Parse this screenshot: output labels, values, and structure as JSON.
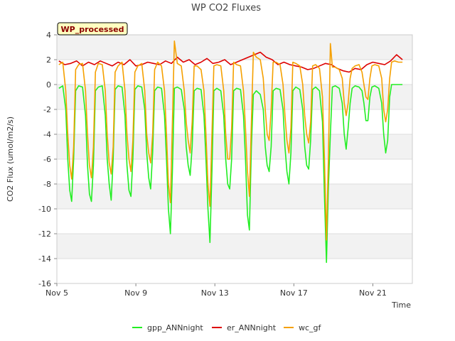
{
  "chart_data": {
    "type": "line",
    "title": "WP CO2 Fluxes",
    "xlabel": "Time",
    "ylabel": "CO2 Flux (umol/m2/s)",
    "annotation": "WP_processed",
    "xlim": [
      5.0,
      23.0
    ],
    "ylim": [
      -16,
      4
    ],
    "yticks": [
      4,
      2,
      0,
      -2,
      -4,
      -6,
      -8,
      -10,
      -12,
      -14,
      -16
    ],
    "xticks": [
      {
        "value": 5,
        "label": "Nov 5"
      },
      {
        "value": 9,
        "label": "Nov 9"
      },
      {
        "value": 13,
        "label": "Nov 13"
      },
      {
        "value": 17,
        "label": "Nov 17"
      },
      {
        "value": 21,
        "label": "Nov 21"
      }
    ],
    "legend_position": "bottom",
    "series": [
      {
        "name": "gpp_ANNnight",
        "color": "#22ee22",
        "x": [
          5.1,
          5.3,
          5.45,
          5.55,
          5.65,
          5.75,
          5.85,
          5.95,
          6.1,
          6.3,
          6.45,
          6.55,
          6.65,
          6.75,
          6.85,
          6.95,
          7.1,
          7.3,
          7.45,
          7.55,
          7.65,
          7.75,
          7.85,
          7.95,
          8.1,
          8.3,
          8.45,
          8.55,
          8.65,
          8.75,
          8.85,
          8.95,
          9.1,
          9.3,
          9.45,
          9.55,
          9.65,
          9.75,
          9.85,
          9.95,
          10.1,
          10.3,
          10.45,
          10.55,
          10.65,
          10.75,
          10.85,
          10.95,
          11.1,
          11.3,
          11.45,
          11.55,
          11.65,
          11.75,
          11.85,
          11.95,
          12.1,
          12.3,
          12.45,
          12.55,
          12.65,
          12.75,
          12.85,
          12.95,
          13.1,
          13.3,
          13.45,
          13.55,
          13.65,
          13.75,
          13.85,
          13.95,
          14.1,
          14.3,
          14.45,
          14.55,
          14.65,
          14.75,
          14.85,
          14.95,
          15.1,
          15.3,
          15.45,
          15.55,
          15.65,
          15.75,
          15.85,
          15.95,
          16.1,
          16.3,
          16.45,
          16.55,
          16.65,
          16.75,
          16.85,
          16.95,
          17.1,
          17.3,
          17.45,
          17.55,
          17.65,
          17.75,
          17.85,
          17.95,
          18.1,
          18.3,
          18.45,
          18.55,
          18.65,
          18.75,
          18.85,
          18.95,
          19.1,
          19.3,
          19.45,
          19.55,
          19.65,
          19.75,
          19.85,
          19.95,
          20.1,
          20.3,
          20.45,
          20.55,
          20.65,
          20.75,
          20.85,
          20.95,
          21.1,
          21.3,
          21.45,
          21.55,
          21.65,
          21.75,
          21.85,
          21.95,
          22.1,
          22.3,
          22.5
        ],
        "y": [
          -0.3,
          -0.1,
          -2.0,
          -6.0,
          -8.5,
          -9.4,
          -6.0,
          -0.5,
          -0.1,
          -0.2,
          -2.5,
          -6.5,
          -8.8,
          -9.4,
          -6.5,
          -0.5,
          -0.2,
          -0.1,
          -2.5,
          -6.0,
          -8.0,
          -9.3,
          -6.0,
          -0.4,
          -0.1,
          -0.2,
          -2.5,
          -6.5,
          -8.5,
          -9.0,
          -6.0,
          -0.4,
          -0.1,
          -0.2,
          -2.0,
          -5.5,
          -7.5,
          -8.4,
          -5.5,
          -0.5,
          -0.2,
          -0.3,
          -2.5,
          -6.0,
          -10.0,
          -12.0,
          -7.0,
          -0.3,
          -0.2,
          -0.4,
          -2.0,
          -5.0,
          -6.5,
          -7.3,
          -5.0,
          -0.5,
          -0.3,
          -0.4,
          -2.5,
          -6.0,
          -10.0,
          -12.7,
          -7.0,
          -0.5,
          -0.3,
          -0.5,
          -2.5,
          -6.0,
          -8.0,
          -8.4,
          -6.0,
          -0.5,
          -0.3,
          -0.4,
          -2.5,
          -6.0,
          -10.5,
          -11.7,
          -5.0,
          -0.8,
          -0.5,
          -0.8,
          -2.0,
          -5.0,
          -6.5,
          -7.0,
          -5.0,
          -0.5,
          -0.3,
          -0.4,
          -2.0,
          -5.0,
          -7.0,
          -8.0,
          -5.5,
          -0.5,
          -0.2,
          -0.4,
          -2.0,
          -5.0,
          -6.5,
          -6.8,
          -4.5,
          -0.4,
          -0.2,
          -0.5,
          -3.0,
          -9.0,
          -14.3,
          -8.3,
          -4.0,
          -0.2,
          -0.1,
          -0.3,
          -1.5,
          -4.0,
          -5.2,
          -3.5,
          -1.5,
          -0.3,
          -0.1,
          -0.2,
          -0.5,
          -1.5,
          -2.9,
          -2.9,
          -1.0,
          -0.2,
          -0.1,
          -0.3,
          -1.5,
          -4.0,
          -5.5,
          -4.5,
          -1.0,
          0.0,
          0.0,
          0.0,
          0.0
        ]
      },
      {
        "name": "er_ANNnight",
        "color": "#dd0000",
        "x": [
          5.1,
          5.4,
          5.7,
          6.0,
          6.3,
          6.6,
          6.9,
          7.2,
          7.5,
          7.8,
          8.1,
          8.4,
          8.7,
          9.0,
          9.3,
          9.6,
          9.9,
          10.2,
          10.5,
          10.8,
          11.1,
          11.4,
          11.7,
          12.0,
          12.3,
          12.6,
          12.9,
          13.2,
          13.5,
          13.8,
          14.1,
          14.4,
          14.7,
          15.0,
          15.3,
          15.6,
          15.9,
          16.2,
          16.5,
          16.8,
          17.1,
          17.4,
          17.7,
          18.0,
          18.3,
          18.6,
          18.9,
          19.2,
          19.5,
          19.8,
          20.1,
          20.4,
          20.7,
          21.0,
          21.3,
          21.6,
          21.9,
          22.2,
          22.5
        ],
        "y": [
          1.9,
          1.6,
          1.7,
          1.9,
          1.5,
          1.8,
          1.6,
          1.9,
          1.7,
          1.5,
          1.8,
          1.6,
          2.0,
          1.5,
          1.6,
          1.8,
          1.7,
          1.6,
          1.9,
          1.7,
          2.2,
          1.8,
          2.0,
          1.6,
          1.8,
          2.1,
          1.7,
          1.8,
          2.0,
          1.6,
          1.8,
          2.0,
          2.2,
          2.4,
          2.6,
          2.2,
          2.0,
          1.6,
          1.8,
          1.6,
          1.5,
          1.4,
          1.2,
          1.3,
          1.5,
          1.7,
          1.6,
          1.3,
          1.1,
          1.0,
          1.3,
          1.2,
          1.6,
          1.8,
          1.7,
          1.6,
          1.9,
          2.4,
          2.0
        ]
      },
      {
        "name": "wc_gf",
        "color": "#f5a000",
        "x": [
          5.1,
          5.3,
          5.45,
          5.55,
          5.65,
          5.75,
          5.85,
          5.95,
          6.1,
          6.3,
          6.45,
          6.55,
          6.65,
          6.75,
          6.85,
          6.95,
          7.1,
          7.3,
          7.45,
          7.55,
          7.65,
          7.75,
          7.85,
          7.95,
          8.1,
          8.3,
          8.45,
          8.55,
          8.65,
          8.75,
          8.85,
          8.95,
          9.1,
          9.3,
          9.45,
          9.55,
          9.65,
          9.75,
          9.85,
          9.95,
          10.1,
          10.3,
          10.45,
          10.55,
          10.65,
          10.75,
          10.85,
          10.95,
          11.1,
          11.3,
          11.45,
          11.55,
          11.65,
          11.75,
          11.85,
          11.95,
          12.1,
          12.3,
          12.45,
          12.55,
          12.65,
          12.75,
          12.85,
          12.95,
          13.1,
          13.3,
          13.45,
          13.55,
          13.65,
          13.75,
          13.85,
          13.95,
          14.1,
          14.3,
          14.45,
          14.55,
          14.65,
          14.75,
          14.85,
          14.95,
          15.1,
          15.3,
          15.45,
          15.55,
          15.65,
          15.75,
          15.85,
          15.95,
          16.1,
          16.3,
          16.45,
          16.55,
          16.65,
          16.75,
          16.85,
          16.95,
          17.1,
          17.3,
          17.45,
          17.55,
          17.65,
          17.75,
          17.85,
          17.95,
          18.1,
          18.3,
          18.45,
          18.55,
          18.65,
          18.75,
          18.85,
          18.95,
          19.1,
          19.3,
          19.45,
          19.55,
          19.65,
          19.75,
          19.85,
          19.95,
          20.1,
          20.3,
          20.45,
          20.55,
          20.65,
          20.75,
          20.85,
          20.95,
          21.1,
          21.3,
          21.45,
          21.55,
          21.65,
          21.75,
          21.85,
          21.95,
          22.1,
          22.3,
          22.5
        ],
        "y": [
          1.6,
          1.8,
          -0.5,
          -4.0,
          -6.5,
          -7.6,
          -5.0,
          1.2,
          1.6,
          1.7,
          -0.5,
          -4.0,
          -6.5,
          -7.5,
          -5.0,
          1.0,
          1.7,
          1.6,
          -0.5,
          -4.0,
          -6.3,
          -7.2,
          -5.0,
          1.0,
          1.5,
          1.8,
          -0.5,
          -4.0,
          -6.0,
          -7.0,
          -4.5,
          1.0,
          1.5,
          1.7,
          -0.5,
          -4.0,
          -5.5,
          -6.3,
          -4.0,
          1.2,
          1.8,
          1.5,
          -0.5,
          -4.0,
          -8.0,
          -9.5,
          -3.0,
          3.5,
          1.7,
          1.5,
          -0.5,
          -3.0,
          -4.5,
          -5.5,
          -3.0,
          1.5,
          1.5,
          1.2,
          -0.5,
          -4.0,
          -8.0,
          -9.8,
          -4.0,
          1.5,
          1.6,
          1.5,
          -0.5,
          -4.0,
          -6.0,
          -6.0,
          -3.5,
          1.8,
          1.6,
          1.5,
          -0.5,
          -3.5,
          -7.0,
          -9.0,
          -3.0,
          2.6,
          2.2,
          2.0,
          0.5,
          -2.0,
          -4.0,
          -4.5,
          -2.0,
          1.8,
          1.8,
          1.6,
          0.0,
          -2.5,
          -4.5,
          -5.5,
          -3.5,
          1.8,
          1.7,
          1.5,
          0.0,
          -2.5,
          -4.0,
          -4.7,
          -3.0,
          1.5,
          1.6,
          1.3,
          -1.0,
          -6.0,
          -12.5,
          -6.0,
          3.3,
          1.4,
          1.4,
          1.2,
          0.5,
          -1.5,
          -2.5,
          -1.5,
          0.5,
          1.3,
          1.5,
          1.6,
          1.0,
          0.0,
          -1.0,
          -1.2,
          0.5,
          1.5,
          1.6,
          1.5,
          0.5,
          -2.0,
          -3.0,
          -2.0,
          0.5,
          1.8,
          1.9,
          1.8,
          1.8
        ]
      }
    ]
  }
}
